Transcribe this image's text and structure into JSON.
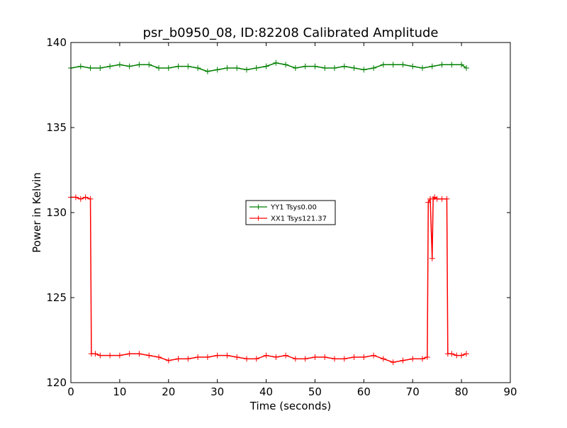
{
  "chart_data": {
    "type": "line",
    "title": "psr_b0950_08, ID:82208 Calibrated Amplitude",
    "xlabel": "Time (seconds)",
    "ylabel": "Power in Kelvin",
    "xlim": [
      0,
      90
    ],
    "ylim": [
      120,
      140
    ],
    "xticks": [
      0,
      10,
      20,
      30,
      40,
      50,
      60,
      70,
      80,
      90
    ],
    "yticks": [
      120,
      125,
      130,
      135,
      140
    ],
    "grid": false,
    "legend_position": "center",
    "marker": "+",
    "series": [
      {
        "name": "YY1 Tsys0.00",
        "color": "#008000",
        "x": [
          0,
          2,
          4,
          6,
          8,
          10,
          12,
          14,
          16,
          18,
          20,
          22,
          24,
          26,
          28,
          30,
          32,
          34,
          36,
          38,
          40,
          42,
          44,
          46,
          48,
          50,
          52,
          54,
          56,
          58,
          60,
          62,
          64,
          66,
          68,
          70,
          72,
          74,
          76,
          78,
          80,
          81
        ],
        "y": [
          138.5,
          138.6,
          138.5,
          138.5,
          138.6,
          138.7,
          138.6,
          138.7,
          138.7,
          138.5,
          138.5,
          138.6,
          138.6,
          138.5,
          138.3,
          138.4,
          138.5,
          138.5,
          138.4,
          138.5,
          138.6,
          138.8,
          138.7,
          138.5,
          138.6,
          138.6,
          138.5,
          138.5,
          138.6,
          138.5,
          138.4,
          138.5,
          138.7,
          138.7,
          138.7,
          138.6,
          138.5,
          138.6,
          138.7,
          138.7,
          138.7,
          138.5
        ]
      },
      {
        "name": "XX1 Tsys121.37",
        "color": "#ff0000",
        "x": [
          0,
          1,
          2,
          3,
          4,
          4.2,
          5,
          6,
          8,
          10,
          12,
          14,
          16,
          18,
          20,
          22,
          24,
          26,
          28,
          30,
          32,
          34,
          36,
          38,
          40,
          42,
          44,
          46,
          48,
          50,
          52,
          54,
          56,
          58,
          60,
          62,
          64,
          66,
          68,
          70,
          72,
          73,
          73.2,
          73.6,
          74,
          74.2,
          74.5,
          75,
          76,
          77,
          77.2,
          78,
          79,
          80,
          81
        ],
        "y": [
          130.9,
          130.9,
          130.8,
          130.9,
          130.8,
          121.7,
          121.7,
          121.6,
          121.6,
          121.6,
          121.7,
          121.7,
          121.6,
          121.5,
          121.3,
          121.4,
          121.4,
          121.5,
          121.5,
          121.6,
          121.6,
          121.5,
          121.4,
          121.4,
          121.6,
          121.5,
          121.6,
          121.4,
          121.4,
          121.5,
          121.5,
          121.4,
          121.4,
          121.5,
          121.5,
          121.6,
          121.4,
          121.2,
          121.3,
          121.4,
          121.4,
          121.5,
          130.6,
          130.8,
          127.3,
          130.8,
          130.9,
          130.8,
          130.8,
          130.8,
          121.7,
          121.7,
          121.6,
          121.6,
          121.7
        ]
      }
    ]
  }
}
